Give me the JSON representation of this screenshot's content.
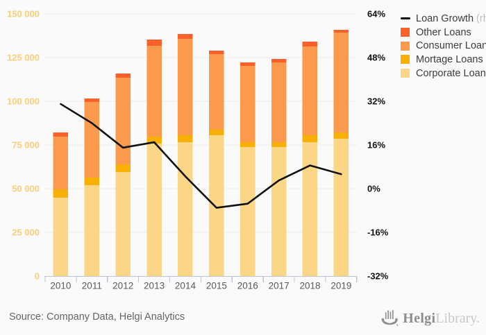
{
  "chart_data": {
    "type": "bar",
    "variant": "stacked-bars-with-line-overlay",
    "categories": [
      "2010",
      "2011",
      "2012",
      "2013",
      "2014",
      "2015",
      "2016",
      "2017",
      "2018",
      "2019"
    ],
    "series": [
      {
        "name": "Corporate Loans",
        "type": "bar",
        "color": "#fbd687",
        "values": [
          44800,
          52000,
          59500,
          75800,
          76600,
          80600,
          73800,
          73800,
          76600,
          78600
        ]
      },
      {
        "name": "Mortage Loans",
        "type": "bar",
        "color": "#f9b005",
        "values": [
          4800,
          4300,
          4400,
          4000,
          4000,
          3100,
          2800,
          2800,
          4000,
          3500
        ]
      },
      {
        "name": "Consumer Loans",
        "type": "bar",
        "color": "#fb9a4d",
        "values": [
          30200,
          43300,
          49600,
          51900,
          55100,
          43300,
          43600,
          45600,
          50700,
          57200
        ]
      },
      {
        "name": "Other Loans",
        "type": "bar",
        "color": "#f8622a",
        "values": [
          2300,
          2000,
          2400,
          3600,
          2800,
          2000,
          2000,
          2000,
          2800,
          1600
        ]
      },
      {
        "name": "Loan Growth",
        "type": "line",
        "axis": "right",
        "unit": "%",
        "color": "#111111",
        "values": [
          31,
          24,
          15,
          17,
          4.5,
          -7,
          -5.5,
          3,
          8.5,
          5.3
        ]
      }
    ],
    "left_axis": {
      "min": 0,
      "max": 150000,
      "tick_step": 25000,
      "tick_labels": [
        "0",
        "25 000",
        "50 000",
        "75 000",
        "100 000",
        "125 000",
        "150 000"
      ],
      "label_color": "#fbce7a"
    },
    "right_axis": {
      "min": -32,
      "max": 64,
      "tick_step": 16,
      "tick_labels": [
        "-32%",
        "-16%",
        "0%",
        "16%",
        "32%",
        "48%",
        "64%"
      ],
      "label_color": "#111111"
    },
    "grid": true,
    "legend_position": "top-right",
    "legend": [
      {
        "label": "Loan Growth",
        "suffix": "(rhs)",
        "swatch": "line",
        "color": "#111111"
      },
      {
        "label": "Other Loans",
        "suffix": "",
        "swatch": "square",
        "color": "#f8622a"
      },
      {
        "label": "Consumer Loans",
        "suffix": "",
        "swatch": "square",
        "color": "#fb9a4d"
      },
      {
        "label": "Mortage Loans",
        "suffix": "",
        "swatch": "square",
        "color": "#f9b005"
      },
      {
        "label": "Corporate Loans",
        "suffix": "",
        "swatch": "square",
        "color": "#fbd687"
      }
    ]
  },
  "footer": {
    "source_text": "Source: Company Data, Helgi Analytics",
    "logo": {
      "icon": "viking-ship-icon",
      "brand_primary": "Helgi",
      "brand_secondary": "Library."
    }
  },
  "colors": {
    "background": "#fafafa",
    "gridline": "#ececec",
    "axis_line": "#bcc4d6",
    "year_label": "#5a5a5a",
    "source_text": "#646464",
    "legend_text": "#3d3d3d",
    "legend_suffix": "#bcbcbc",
    "logo_gray": "#909090"
  }
}
